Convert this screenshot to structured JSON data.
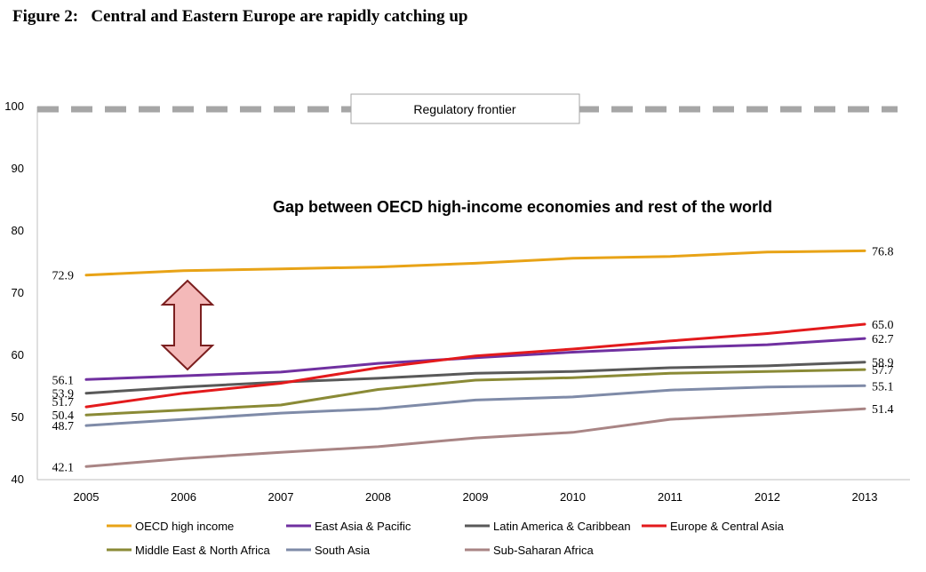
{
  "figure": {
    "label": "Figure 2:",
    "title": "Central and Eastern Europe are rapidly catching up"
  },
  "chart_data": {
    "type": "line",
    "title": "Figure 2:   Central and Eastern Europe are rapidly catching up",
    "x": [
      "2005",
      "2006",
      "2007",
      "2008",
      "2009",
      "2010",
      "2011",
      "2012",
      "2013"
    ],
    "ylim": [
      40,
      100
    ],
    "yticks": [
      "40",
      "50",
      "60",
      "70",
      "80",
      "90",
      "100"
    ],
    "xlabel": "",
    "ylabel": "",
    "grid": false,
    "legend_position": "bottom",
    "annotations": {
      "frontier_label": "Regulatory frontier",
      "frontier_value": 100,
      "gap_text": "Gap between OECD high-income economies and rest of the world"
    },
    "series": [
      {
        "name": "OECD high income",
        "color": "#E8A317",
        "values": [
          72.9,
          73.6,
          73.9,
          74.2,
          74.8,
          75.6,
          75.9,
          76.6,
          76.8
        ],
        "start_label": "72.9",
        "end_label": "76.8"
      },
      {
        "name": "East Asia & Pacific",
        "color": "#7030A0",
        "values": [
          56.1,
          56.7,
          57.3,
          58.7,
          59.6,
          60.5,
          61.2,
          61.7,
          62.7
        ],
        "start_label": "56.1",
        "end_label": "62.7"
      },
      {
        "name": "Latin America & Caribbean",
        "color": "#595959",
        "values": [
          53.9,
          54.9,
          55.7,
          56.3,
          57.1,
          57.4,
          58.0,
          58.3,
          58.9
        ],
        "start_label": "53.9",
        "end_label": "58.9"
      },
      {
        "name": "Europe & Central Asia",
        "color": "#E31A1C",
        "values": [
          51.7,
          53.9,
          55.5,
          58.0,
          59.9,
          61.0,
          62.3,
          63.5,
          65.0
        ],
        "start_label": "51.7",
        "end_label": "65.0"
      },
      {
        "name": "Middle East & North Africa",
        "color": "#8A8A36",
        "values": [
          50.4,
          51.2,
          52.0,
          54.5,
          56.0,
          56.4,
          57.1,
          57.4,
          57.7
        ],
        "start_label": "50.4",
        "end_label": "57.7"
      },
      {
        "name": "South Asia",
        "color": "#7F8BA8",
        "values": [
          48.7,
          49.7,
          50.7,
          51.4,
          52.8,
          53.3,
          54.4,
          54.9,
          55.1
        ],
        "start_label": "48.7",
        "end_label": "55.1"
      },
      {
        "name": "Sub-Saharan Africa",
        "color": "#A98585",
        "values": [
          42.1,
          43.4,
          44.4,
          45.3,
          46.7,
          47.6,
          49.7,
          50.5,
          51.4
        ],
        "start_label": "42.1",
        "end_label": "51.4"
      }
    ]
  }
}
